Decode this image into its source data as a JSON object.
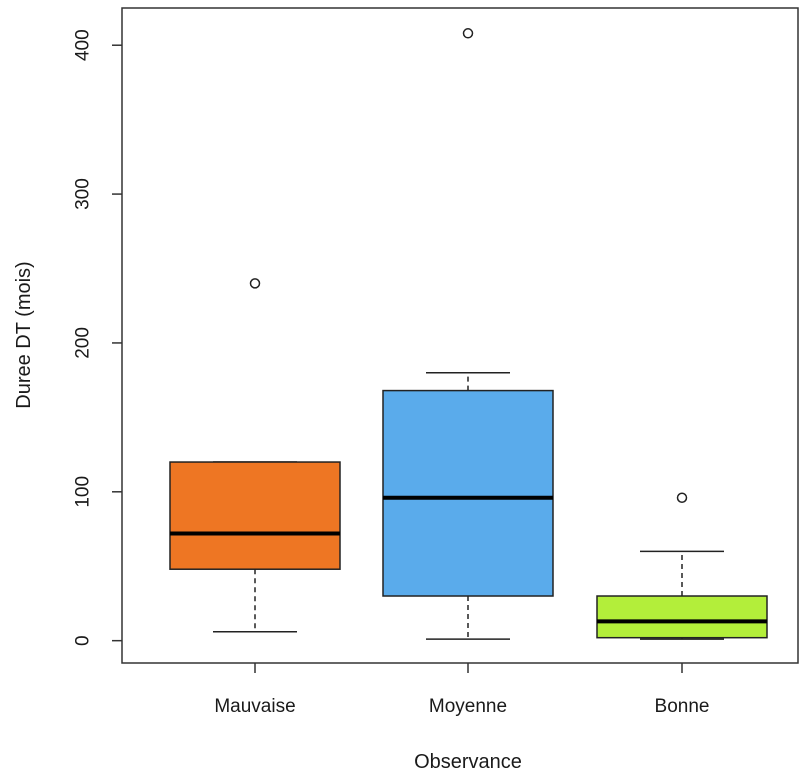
{
  "chart_data": {
    "type": "boxplot",
    "title": "",
    "xlabel": "Observance",
    "ylabel": "Duree DT (mois)",
    "ylim": [
      -15,
      425
    ],
    "yticks": [
      0,
      100,
      200,
      300,
      400
    ],
    "categories": [
      "Mauvaise",
      "Moyenne",
      "Bonne"
    ],
    "colors": [
      "#ee7623",
      "#5aabeb",
      "#b3ee3a"
    ],
    "boxes": [
      {
        "category": "Mauvaise",
        "whisker_low": 6,
        "q1": 48,
        "median": 72,
        "q3": 120,
        "whisker_high": 120,
        "outliers": [
          240
        ]
      },
      {
        "category": "Moyenne",
        "whisker_low": 1,
        "q1": 30,
        "median": 96,
        "q3": 168,
        "whisker_high": 180,
        "outliers": [
          408
        ]
      },
      {
        "category": "Bonne",
        "whisker_low": 1,
        "q1": 2,
        "median": 13,
        "q3": 30,
        "whisker_high": 60,
        "outliers": [
          96
        ]
      }
    ],
    "grid": false,
    "legend": "none"
  }
}
